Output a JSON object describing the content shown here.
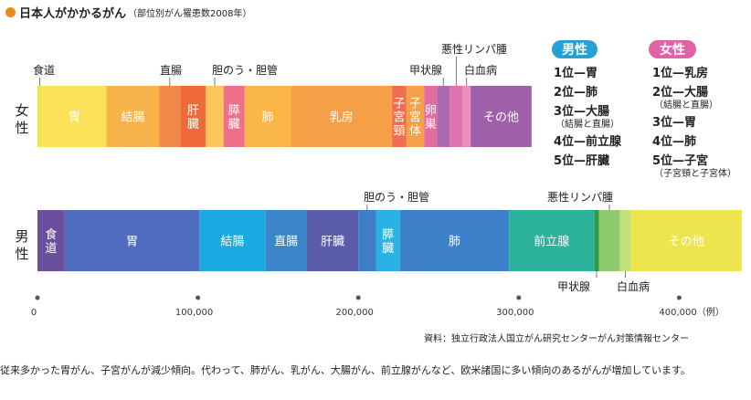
{
  "title": {
    "main": "日本人がかかるがん",
    "sub": "（部位別がん罹患数2008年）"
  },
  "colors": {
    "accent": "#e8891f",
    "male_badge": "#27a0d6",
    "female_badge": "#e262a6"
  },
  "chart_data": {
    "type": "bar",
    "orientation": "horizontal-stacked",
    "x_axis": {
      "min": 0,
      "max": 400000,
      "ticks": [
        0,
        100000,
        200000,
        300000,
        400000
      ],
      "tick_labels": [
        "0",
        "100,000",
        "200,000",
        "300,000",
        "400,000（例）"
      ]
    },
    "series": [
      {
        "name": "女性",
        "label": "女\n性",
        "segments": [
          {
            "site": "食道",
            "label": "",
            "start": 0,
            "end": 3000,
            "color": "#f4e542",
            "callout": "食道"
          },
          {
            "site": "胃",
            "label": "胃",
            "start": 3000,
            "end": 43000,
            "color": "#fde35a"
          },
          {
            "site": "結腸",
            "label": "結腸",
            "start": 43000,
            "end": 76000,
            "color": "#f8b34a"
          },
          {
            "site": "直腸",
            "label": "",
            "start": 76000,
            "end": 89000,
            "color": "#f0894a",
            "callout": "直腸"
          },
          {
            "site": "肝臓",
            "label": "肝\n臓",
            "start": 89000,
            "end": 105000,
            "color": "#ee6a3a"
          },
          {
            "site": "胆のう・胆管",
            "label": "",
            "start": 105000,
            "end": 116000,
            "color": "#fbc65a",
            "callout": "胆のう・胆管"
          },
          {
            "site": "膵臓",
            "label": "膵\n臓",
            "start": 116000,
            "end": 129000,
            "color": "#ee6f8a"
          },
          {
            "site": "肺",
            "label": "肺",
            "start": 129000,
            "end": 158000,
            "color": "#fbb64a"
          },
          {
            "site": "乳房",
            "label": "乳房",
            "start": 158000,
            "end": 221000,
            "color": "#f5a046"
          },
          {
            "site": "子宮頸",
            "label": "子\n宮\n頸",
            "start": 221000,
            "end": 230000,
            "color": "#ef6e52"
          },
          {
            "site": "子宮体",
            "label": "子\n宮\n体",
            "start": 230000,
            "end": 241000,
            "color": "#f6a04a"
          },
          {
            "site": "卵巣",
            "label": "卵\n巣",
            "start": 241000,
            "end": 249000,
            "color": "#e46c9e"
          },
          {
            "site": "甲状腺",
            "label": "",
            "start": 249000,
            "end": 257000,
            "color": "#ab6ab0",
            "callout": "甲状腺"
          },
          {
            "site": "悪性リンパ腫",
            "label": "",
            "start": 257000,
            "end": 265000,
            "color": "#de71ae",
            "callout": "悪性リンパ腫"
          },
          {
            "site": "白血病",
            "label": "",
            "start": 265000,
            "end": 270000,
            "color": "#e98fbd",
            "callout": "白血病"
          },
          {
            "site": "その他",
            "label": "その他",
            "start": 270000,
            "end": 308000,
            "color": "#9f5fa9"
          }
        ]
      },
      {
        "name": "男性",
        "label": "男\n性",
        "segments": [
          {
            "site": "食道",
            "label": "食\n道",
            "start": 0,
            "end": 17000,
            "color": "#6a4f9c"
          },
          {
            "site": "胃",
            "label": "胃",
            "start": 17000,
            "end": 101000,
            "color": "#4f6dbf"
          },
          {
            "site": "結腸",
            "label": "結腸",
            "start": 101000,
            "end": 142000,
            "color": "#1ca8e0"
          },
          {
            "site": "直腸",
            "label": "直腸",
            "start": 142000,
            "end": 168000,
            "color": "#3b86c9"
          },
          {
            "site": "肝臓",
            "label": "肝臓",
            "start": 168000,
            "end": 200000,
            "color": "#5b5bab"
          },
          {
            "site": "胆のう・胆管",
            "label": "",
            "start": 200000,
            "end": 211000,
            "color": "#3f7dc4",
            "callout": "胆のう・胆管"
          },
          {
            "site": "膵臓",
            "label": "膵\n臓",
            "start": 211000,
            "end": 226000,
            "color": "#2ab2e6"
          },
          {
            "site": "肺",
            "label": "肺",
            "start": 226000,
            "end": 294000,
            "color": "#3d82c8"
          },
          {
            "site": "前立腺",
            "label": "前立腺",
            "start": 294000,
            "end": 347000,
            "color": "#2cb29a"
          },
          {
            "site": "甲状腺",
            "label": "",
            "start": 347000,
            "end": 350000,
            "color": "#2e9a4c",
            "callout": "甲状腺"
          },
          {
            "site": "悪性リンパ腫",
            "label": "",
            "start": 350000,
            "end": 363000,
            "color": "#8fcb6e",
            "callout": "悪性リンパ腫"
          },
          {
            "site": "白血病",
            "label": "",
            "start": 363000,
            "end": 370000,
            "color": "#bfe07a",
            "callout": "白血病"
          },
          {
            "site": "その他",
            "label": "その他",
            "start": 370000,
            "end": 439000,
            "color": "#ece54e"
          }
        ]
      }
    ]
  },
  "ranking": {
    "male": {
      "header": "男性",
      "items": [
        {
          "text": "1位—胃"
        },
        {
          "text": "2位—肺"
        },
        {
          "text": "3位—大腸",
          "note": "（結腸と直腸）"
        },
        {
          "text": "4位—前立腺"
        },
        {
          "text": "5位—肝臓"
        }
      ]
    },
    "female": {
      "header": "女性",
      "items": [
        {
          "text": "1位—乳房"
        },
        {
          "text": "2位—大腸",
          "note": "（結腸と直腸）"
        },
        {
          "text": "3位—胃"
        },
        {
          "text": "4位—肺"
        },
        {
          "text": "5位—子宮",
          "note": "（子宮頸と子宮体）"
        }
      ]
    }
  },
  "source": "資料：独立行政法人国立がん研究センターがん対策情報センター",
  "caption": "従来多かった胃がん、子宮がんが減少傾向。代わって、肺がん、乳がん、大腸がん、前立腺がんなど、欧米諸国に多い傾向のあるがんが増加しています。"
}
